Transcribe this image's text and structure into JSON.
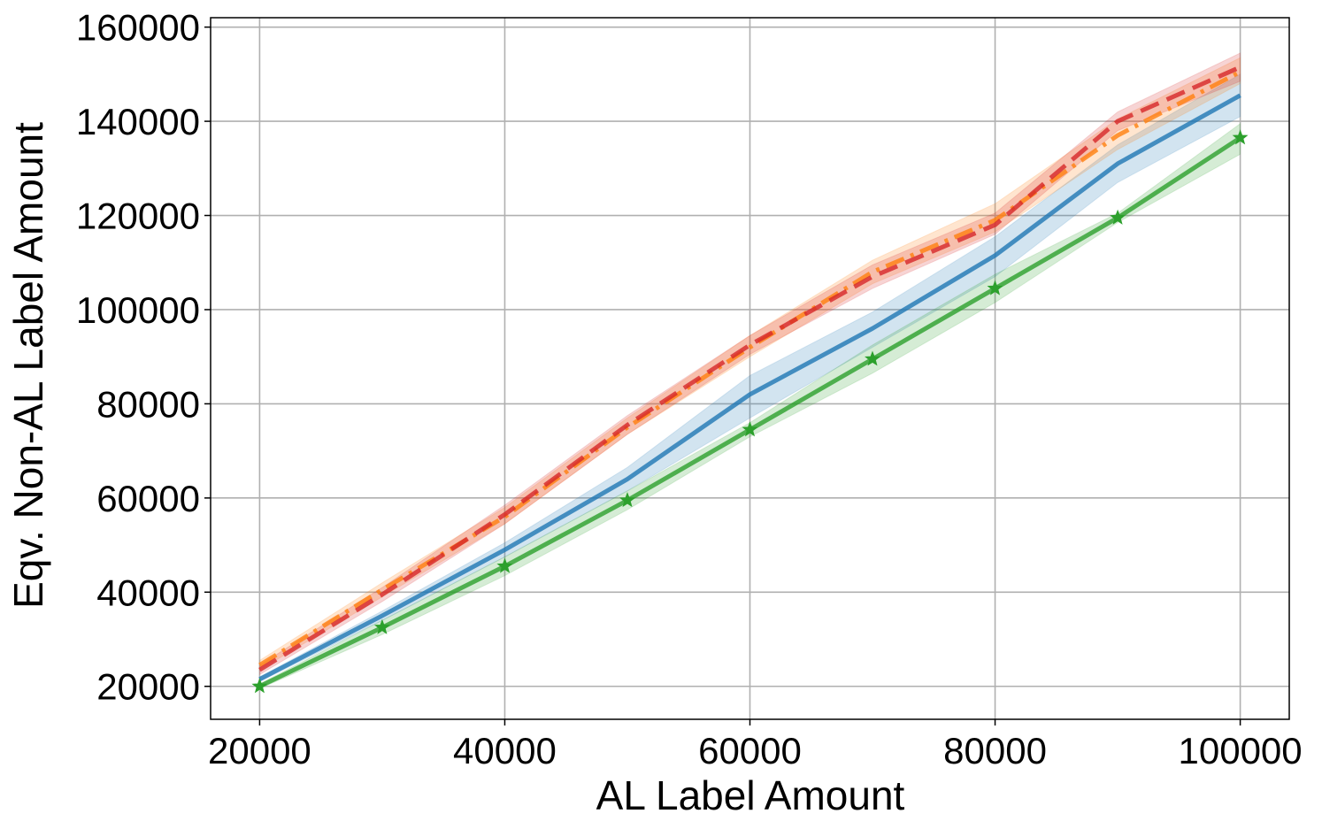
{
  "chart_data": {
    "type": "line",
    "title": "",
    "xlabel": "AL Label Amount",
    "ylabel": "Eqv. Non-AL Label Amount",
    "xlim": [
      16000,
      104000
    ],
    "ylim": [
      13000,
      162000
    ],
    "xticks": [
      20000,
      40000,
      60000,
      80000,
      100000
    ],
    "yticks": [
      20000,
      40000,
      60000,
      80000,
      100000,
      120000,
      140000,
      160000
    ],
    "grid": true,
    "legend": "none",
    "x": [
      20000,
      30000,
      40000,
      50000,
      60000,
      70000,
      80000,
      90000,
      100000
    ],
    "series": [
      {
        "color": "#1f77b4",
        "line_style": "solid",
        "marker": "none",
        "values": [
          21500,
          35000,
          49000,
          64000,
          82000,
          96000,
          111500,
          131000,
          145500
        ],
        "band_low": [
          21000,
          34000,
          47500,
          61500,
          77000,
          92000,
          107000,
          127000,
          141000
        ],
        "band_high": [
          22000,
          36000,
          50500,
          66500,
          86000,
          99500,
          115500,
          135000,
          150000
        ]
      },
      {
        "color": "#ff7f0e",
        "line_style": "dashdot",
        "marker": "none",
        "values": [
          24500,
          40500,
          56000,
          75000,
          92000,
          108000,
          119000,
          137000,
          150500
        ],
        "band_low": [
          23500,
          39000,
          54500,
          73500,
          90000,
          105500,
          116500,
          134000,
          148000
        ],
        "band_high": [
          25500,
          42000,
          58000,
          77000,
          94500,
          110500,
          122500,
          140500,
          153500
        ]
      },
      {
        "color": "#d62728",
        "line_style": "dashed",
        "marker": "none",
        "values": [
          23500,
          39500,
          56500,
          75500,
          92500,
          107000,
          118000,
          140000,
          151500
        ],
        "band_low": [
          22500,
          38000,
          54500,
          73500,
          90500,
          104500,
          116000,
          138000,
          148500
        ],
        "band_high": [
          24500,
          41000,
          58500,
          77500,
          94500,
          109500,
          120500,
          142000,
          154500
        ]
      },
      {
        "color": "#2ca02c",
        "line_style": "solid",
        "marker": "star",
        "values": [
          20000,
          32500,
          45500,
          59500,
          74500,
          89500,
          104500,
          119500,
          136500
        ],
        "band_low": [
          19500,
          31000,
          43500,
          57500,
          73000,
          86500,
          101500,
          118500,
          133000
        ],
        "band_high": [
          20500,
          34000,
          47500,
          61500,
          76000,
          92500,
          107500,
          120500,
          139500
        ]
      }
    ]
  }
}
